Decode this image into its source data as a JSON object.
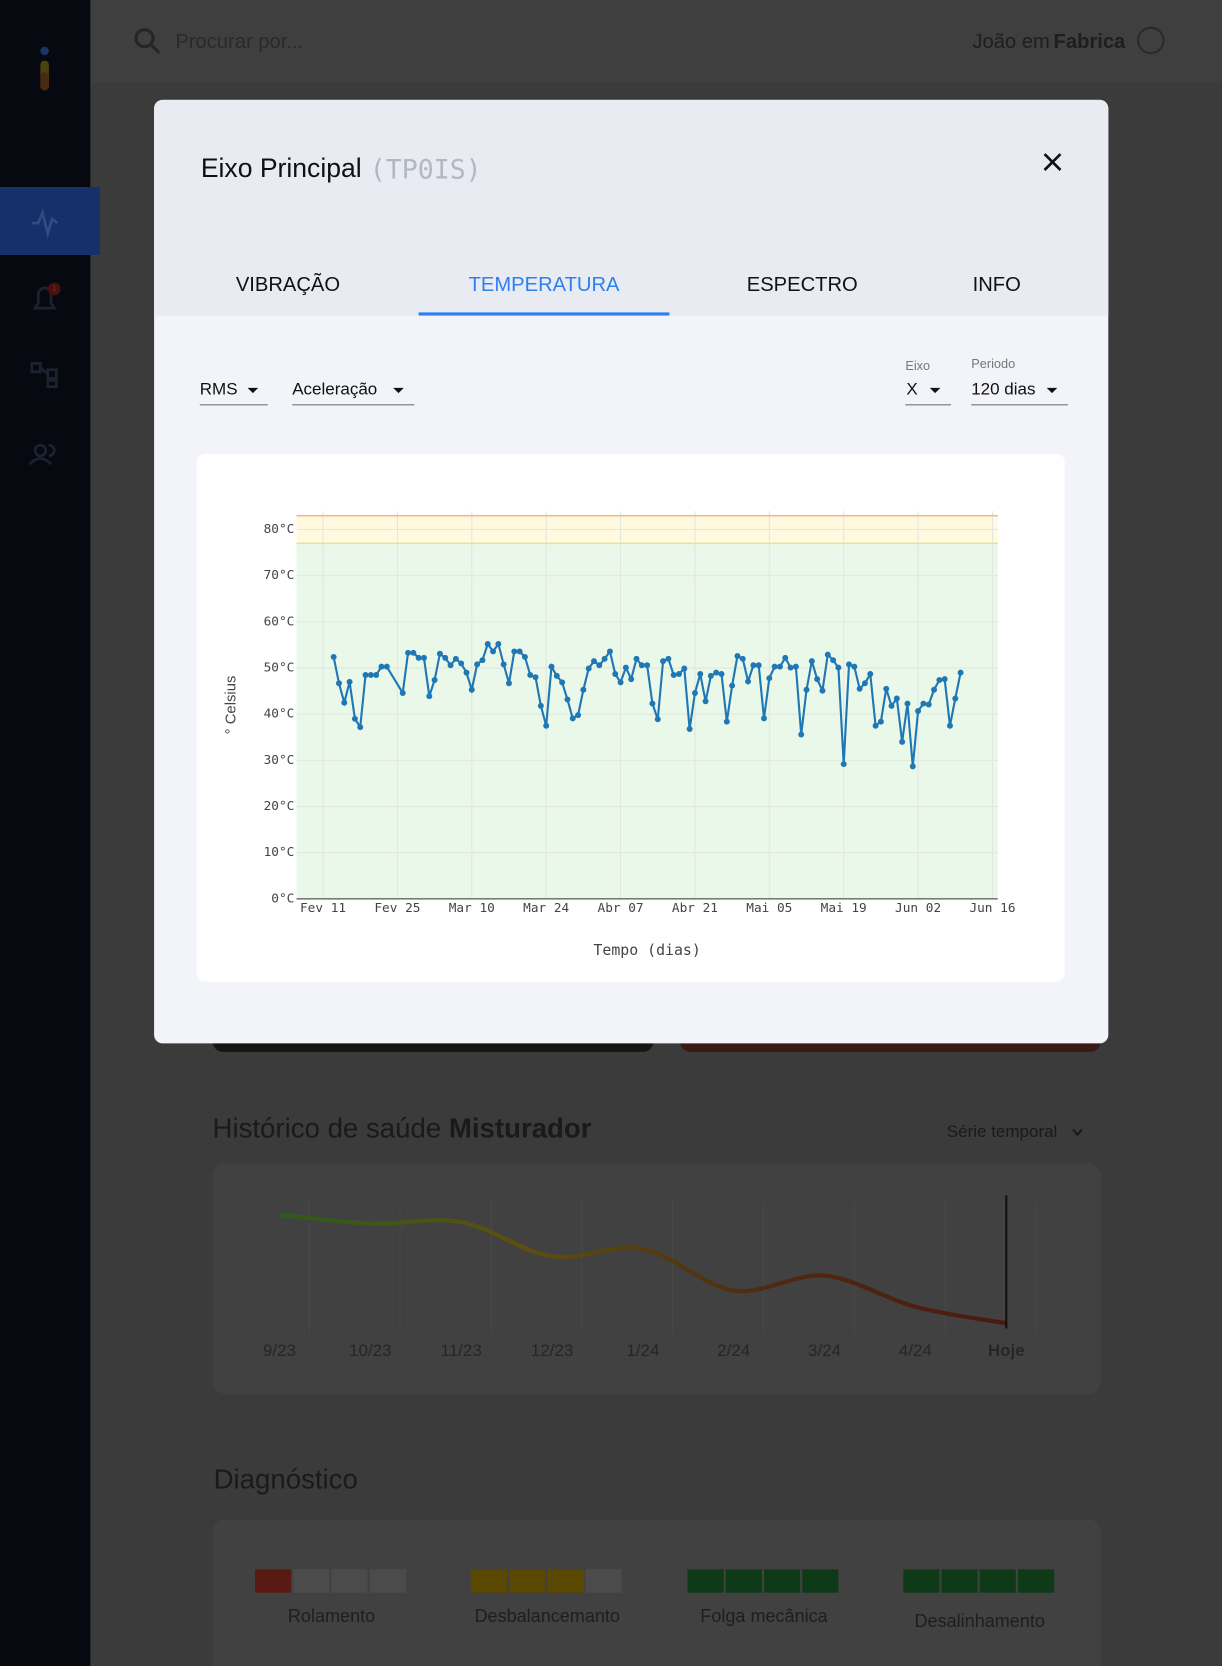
{
  "header": {
    "search_placeholder": "Procurar por...",
    "user": "João em",
    "site": "Fabrica"
  },
  "sidebar": {
    "alert_badge": "1"
  },
  "modal": {
    "title": "Eixo Principal",
    "code": "(TP0IS)",
    "tabs": [
      "VIBRAÇÃO",
      "TEMPERATURA",
      "ESPECTRO",
      "INFO"
    ],
    "active_tab": 1,
    "controls": {
      "metric": "RMS",
      "quantity": "Aceleração",
      "axis_label": "Eixo",
      "axis": "X",
      "period_label": "Periodo",
      "period": "120 dias"
    }
  },
  "chart_data": [
    {
      "type": "line",
      "y_label": "° Celsius",
      "x_label": "Tempo (dias)",
      "color": "#1f77b4",
      "markers": true,
      "grid": true,
      "x": [
        2,
        3,
        4,
        5,
        6,
        7,
        8,
        9,
        10,
        11,
        12,
        15,
        16,
        17,
        18,
        19,
        20,
        21,
        22,
        23,
        24,
        25,
        26,
        27,
        28,
        29,
        30,
        31,
        32,
        33,
        34,
        35,
        36,
        37,
        38,
        39,
        40,
        41,
        42,
        43,
        44,
        45,
        46,
        47,
        48,
        49,
        50,
        51,
        52,
        53,
        54,
        55,
        56,
        57,
        58,
        59,
        60,
        61,
        62,
        63,
        64,
        65,
        66,
        67,
        68,
        69,
        70,
        71,
        72,
        73,
        74,
        75,
        76,
        77,
        78,
        79,
        80,
        81,
        82,
        83,
        84,
        85,
        86,
        87,
        88,
        89,
        90,
        91,
        92,
        93,
        94,
        95,
        96,
        97,
        98,
        99,
        100,
        101,
        102,
        103,
        104,
        105,
        106,
        107,
        108,
        109,
        110,
        111,
        112,
        113,
        114,
        115,
        116,
        117,
        118,
        119,
        120
      ],
      "values": [
        52.4,
        46.7,
        42.5,
        47,
        39,
        37.2,
        48.5,
        48.5,
        48.5,
        50.3,
        50.3,
        44.6,
        53.3,
        53.3,
        52.2,
        52.2,
        43.9,
        47.4,
        53.1,
        52.2,
        50.6,
        52,
        51,
        49,
        45.3,
        50.8,
        51.7,
        55.2,
        53.6,
        55.2,
        50.8,
        46.7,
        53.6,
        53.6,
        52.4,
        48.5,
        48,
        41.8,
        37.5,
        50.3,
        48.3,
        46.9,
        43.2,
        39.1,
        39.8,
        45.3,
        49.9,
        51.5,
        50.6,
        52,
        53.6,
        48.7,
        46.9,
        50.1,
        47.6,
        52,
        50.6,
        50.6,
        42.3,
        38.9,
        51.5,
        52,
        48.5,
        48.7,
        49.9,
        36.8,
        44.6,
        48.7,
        42.8,
        48.3,
        49,
        48.7,
        38.4,
        46.2,
        52.6,
        52,
        47.1,
        50.6,
        50.6,
        39.1,
        47.8,
        50.3,
        50.3,
        52.2,
        50.1,
        50.3,
        35.6,
        45.3,
        51.5,
        47.6,
        45.1,
        52.9,
        51.7,
        50.1,
        29.2,
        50.8,
        50.3,
        45.5,
        46.7,
        48.7,
        37.5,
        38.4,
        45.5,
        41.8,
        43.4,
        34,
        42.3,
        28.7,
        40.7,
        42.3,
        42.1,
        45.3,
        47.4,
        47.6,
        37.5,
        43.4,
        49
      ],
      "xlim": [
        -5,
        127
      ],
      "xticks": [
        {
          "value": 0,
          "label": "Fev 11"
        },
        {
          "value": 14,
          "label": "Fev 25"
        },
        {
          "value": 28,
          "label": "Mar 10"
        },
        {
          "value": 42,
          "label": "Mar 24"
        },
        {
          "value": 56,
          "label": "Abr 07"
        },
        {
          "value": 70,
          "label": "Abr 21"
        },
        {
          "value": 84,
          "label": "Mai 05"
        },
        {
          "value": 98,
          "label": "Mai 19"
        },
        {
          "value": 112,
          "label": "Jun 02"
        },
        {
          "value": 126,
          "label": "Jun 16"
        }
      ],
      "ylim": [
        0,
        84
      ],
      "yticks": [
        {
          "value": 0,
          "label": "0°C"
        },
        {
          "value": 10,
          "label": "10°C"
        },
        {
          "value": 20,
          "label": "20°C"
        },
        {
          "value": 30,
          "label": "30°C"
        },
        {
          "value": 40,
          "label": "40°C"
        },
        {
          "value": 50,
          "label": "50°C"
        },
        {
          "value": 60,
          "label": "60°C"
        },
        {
          "value": 70,
          "label": "70°C"
        },
        {
          "value": 80,
          "label": "80°C"
        }
      ],
      "bands": [
        {
          "from": 0,
          "to": 77,
          "color": "#eaf8ea"
        },
        {
          "from": 77,
          "to": 83,
          "color": "#fff9e0"
        }
      ],
      "limits": [
        {
          "value": 77,
          "color": "#f3df85"
        },
        {
          "value": 83,
          "color": "#f4b788"
        }
      ]
    },
    {
      "type": "line",
      "categories": [
        "9/23",
        "10/23",
        "11/23",
        "12/23",
        "1/24",
        "2/24",
        "3/24",
        "4/24",
        "Hoje"
      ],
      "values": [
        87,
        81,
        82,
        59,
        64,
        36,
        46,
        25,
        14
      ],
      "ylim": [
        0,
        100
      ],
      "today_index": 8,
      "gradient": [
        "#2e5a1c",
        "#5c5010",
        "#4f2a10",
        "#4a1a10"
      ]
    }
  ],
  "health": {
    "title": "Histórico de saúde",
    "asset": "Misturador",
    "view": "Série temporal"
  },
  "diagnostics": {
    "title": "Diagnóstico",
    "segments": 4,
    "items": [
      {
        "label": "Rolamento",
        "level": 1,
        "color": "#5a1a14"
      },
      {
        "label": "Desbalancemanto",
        "level": 3,
        "color": "#5a4800"
      },
      {
        "label": "Folga mecânica",
        "level": 4,
        "color": "#0f3a18"
      },
      {
        "label": "Desalinhamento",
        "level": 4,
        "color": "#0f3a18"
      }
    ]
  }
}
